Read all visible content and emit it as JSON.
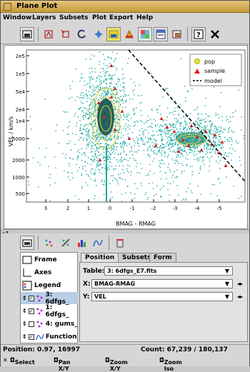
{
  "window": {
    "title": "Plane Plot"
  },
  "menu": [
    "Window",
    "Layers",
    "Subsets",
    "Plot",
    "Export",
    "Help"
  ],
  "plot": {
    "y_label": "VEL / km/s",
    "x_label": "BMAG - RMAG",
    "y_ticks": [
      "2e5",
      "1e5",
      "5e4",
      "2e4",
      "1e4",
      "5000",
      "2000",
      "1000",
      "500"
    ],
    "x_ticks": [
      "3",
      "2",
      "1",
      "0",
      "-1",
      "-2",
      "-3",
      "-4",
      "-5"
    ],
    "legend": [
      {
        "label": "pop",
        "color": "#e8e83a"
      },
      {
        "label": "sample",
        "color": "#e02020"
      },
      {
        "label": "model",
        "color": "#000000"
      }
    ],
    "colors": {
      "scatter": "#1aa8a0",
      "contour": "#e8d028",
      "dense": "#0a4a48"
    }
  },
  "layers": [
    {
      "label": "Frame"
    },
    {
      "label": "Axes"
    },
    {
      "label": "Legend"
    },
    {
      "label": "3: 6dfgs_",
      "checked": true,
      "selected": true
    },
    {
      "label": "1: 6dfgs_",
      "checked": true
    },
    {
      "label": "4: gums_",
      "checked": false
    },
    {
      "label": "Function",
      "checked": true
    }
  ],
  "tabs": [
    "Position",
    "Subsets",
    "Form"
  ],
  "position": {
    "table_label": "Table:",
    "table_value": "3: 6dfgs_E7.fits",
    "x_label": "X:",
    "x_value": "BMAG-RMAG",
    "y_label": "Y:",
    "y_value": "VEL"
  },
  "status": {
    "position": "Position: 0.97, 16997",
    "count": "Count: 67,239 / 180,137"
  },
  "hints": [
    "Select",
    "Pan X/Y",
    "Zoom X/Y",
    "Zoom Iso"
  ]
}
